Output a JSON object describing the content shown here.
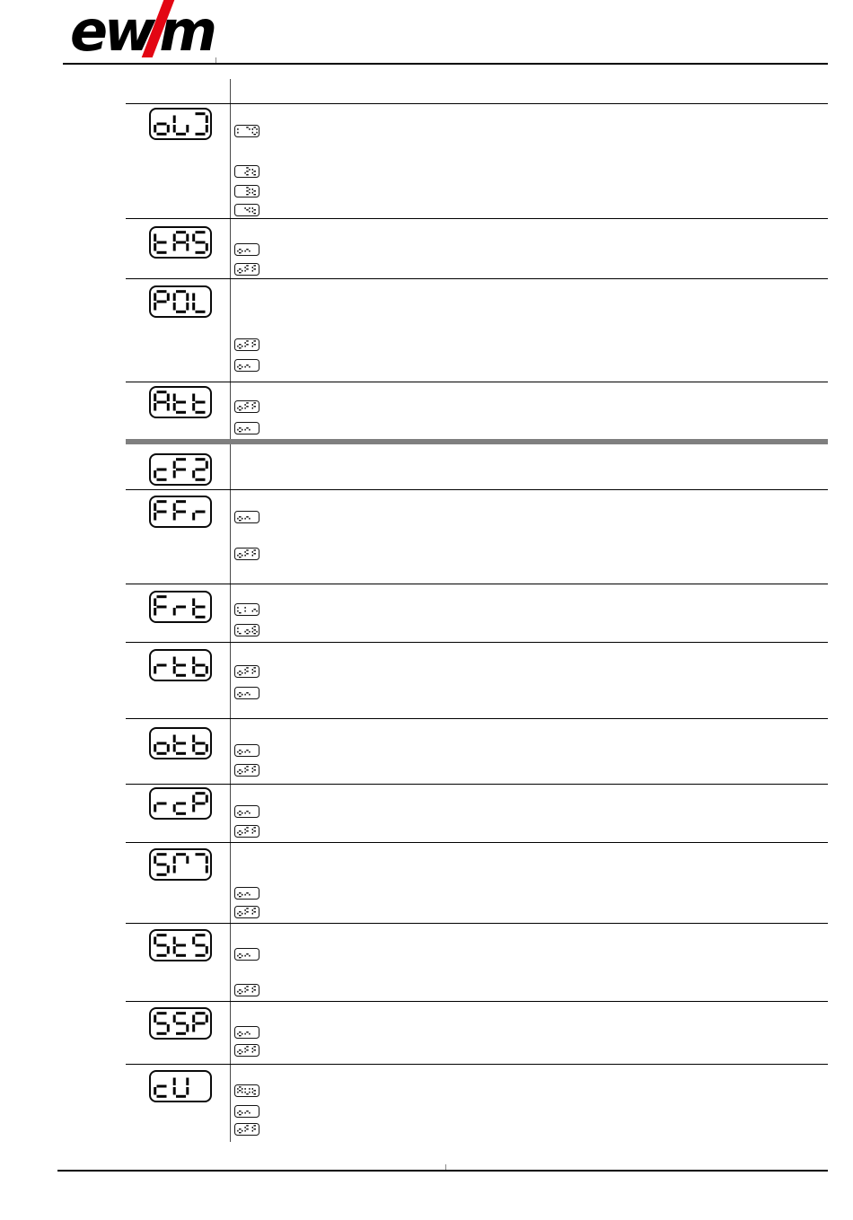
{
  "brand": {
    "logo_left": "ew",
    "logo_slash": "/",
    "logo_right": "m",
    "accent_red": "#e30613"
  },
  "config_menu": {
    "rows": [
      {
        "param": "oUJ",
        "cells": [
          "o",
          "v",
          "J"
        ],
        "options": [
          {
            "label": "1-0",
            "cells": [
              "1",
              "-",
              "0"
            ]
          },
          {
            "label": "2t",
            "cells": [
              " ",
              "2",
              "t"
            ]
          },
          {
            "label": "3t",
            "cells": [
              " ",
              "3",
              "t"
            ]
          },
          {
            "label": "4t",
            "cells": [
              " ",
              "4",
              "t"
            ]
          }
        ]
      },
      {
        "param": "tAS",
        "cells": [
          "t",
          "A",
          "S"
        ],
        "options": [
          {
            "label": "on",
            "cells": [
              "o",
              "n",
              " "
            ]
          },
          {
            "label": "oFF",
            "cells": [
              "o",
              "F",
              "F"
            ]
          }
        ]
      },
      {
        "param": "POL",
        "cells": [
          "P",
          "O",
          "L"
        ],
        "options": [
          {
            "label": "oFF",
            "cells": [
              "o",
              "F",
              "F"
            ]
          },
          {
            "label": "on",
            "cells": [
              "o",
              "n",
              " "
            ]
          }
        ]
      },
      {
        "param": "Att",
        "cells": [
          "A",
          "t",
          "t"
        ],
        "options": [
          {
            "label": "oFF",
            "cells": [
              "o",
              "F",
              "F"
            ]
          },
          {
            "label": "on",
            "cells": [
              "o",
              "n",
              " "
            ]
          }
        ]
      },
      {
        "param": "cF2",
        "cells": [
          "c",
          "F",
          "2"
        ],
        "options": []
      },
      {
        "param": "FFr",
        "cells": [
          "F",
          "F",
          "r"
        ],
        "options": [
          {
            "label": "on",
            "cells": [
              "o",
              "n",
              " "
            ]
          },
          {
            "label": "oFF",
            "cells": [
              "o",
              "F",
              "F"
            ]
          }
        ]
      },
      {
        "param": "Frt",
        "cells": [
          "F",
          "r",
          "t"
        ],
        "options": [
          {
            "label": "Lin",
            "cells": [
              "L",
              "i",
              "n"
            ]
          },
          {
            "label": "LoG",
            "cells": [
              "L",
              "o",
              "G"
            ]
          }
        ]
      },
      {
        "param": "rtb",
        "cells": [
          "r",
          "t",
          "b"
        ],
        "options": [
          {
            "label": "oFF",
            "cells": [
              "o",
              "F",
              "F"
            ]
          },
          {
            "label": "on",
            "cells": [
              "o",
              "n",
              " "
            ]
          }
        ]
      },
      {
        "param": "otb",
        "cells": [
          "o",
          "t",
          "b"
        ],
        "options": [
          {
            "label": "on",
            "cells": [
              "o",
              "n",
              " "
            ]
          },
          {
            "label": "oFF",
            "cells": [
              "o",
              "F",
              "F"
            ]
          }
        ]
      },
      {
        "param": "rcP",
        "cells": [
          "r",
          "c",
          "P"
        ],
        "options": [
          {
            "label": "on",
            "cells": [
              "o",
              "n",
              " "
            ]
          },
          {
            "label": "oFF",
            "cells": [
              "o",
              "F",
              "F"
            ]
          }
        ]
      },
      {
        "param": "SM",
        "cells": [
          "S",
          "M1",
          "M2"
        ],
        "options": [
          {
            "label": "on",
            "cells": [
              "o",
              "n",
              " "
            ]
          },
          {
            "label": "oFF",
            "cells": [
              "o",
              "F",
              "F"
            ]
          }
        ]
      },
      {
        "param": "StS",
        "cells": [
          "S",
          "t",
          "S"
        ],
        "options": [
          {
            "label": "on",
            "cells": [
              "o",
              "n",
              " "
            ]
          },
          {
            "label": "oFF",
            "cells": [
              "o",
              "F",
              "F"
            ]
          }
        ]
      },
      {
        "param": "SSP",
        "cells": [
          "S",
          "S",
          "P"
        ],
        "options": [
          {
            "label": "on",
            "cells": [
              "o",
              "n",
              " "
            ]
          },
          {
            "label": "oFF",
            "cells": [
              "o",
              "F",
              "F"
            ]
          }
        ]
      },
      {
        "param": "cU",
        "cells": [
          "c",
          "U",
          " "
        ],
        "options": [
          {
            "label": "AUt",
            "cells": [
              "A",
              "U",
              "t"
            ]
          },
          {
            "label": "on",
            "cells": [
              "o",
              "n",
              " "
            ]
          },
          {
            "label": "oFF",
            "cells": [
              "o",
              "F",
              "F"
            ]
          }
        ]
      }
    ]
  }
}
